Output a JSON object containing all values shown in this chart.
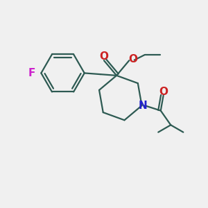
{
  "bg_color": "#f0f0f0",
  "bond_color": "#2d5a52",
  "F_color": "#cc22cc",
  "N_color": "#2222cc",
  "O_color": "#cc2222",
  "line_width": 1.6,
  "figsize": [
    3.0,
    3.0
  ],
  "dpi": 100,
  "xlim": [
    0,
    10
  ],
  "ylim": [
    0,
    10
  ]
}
